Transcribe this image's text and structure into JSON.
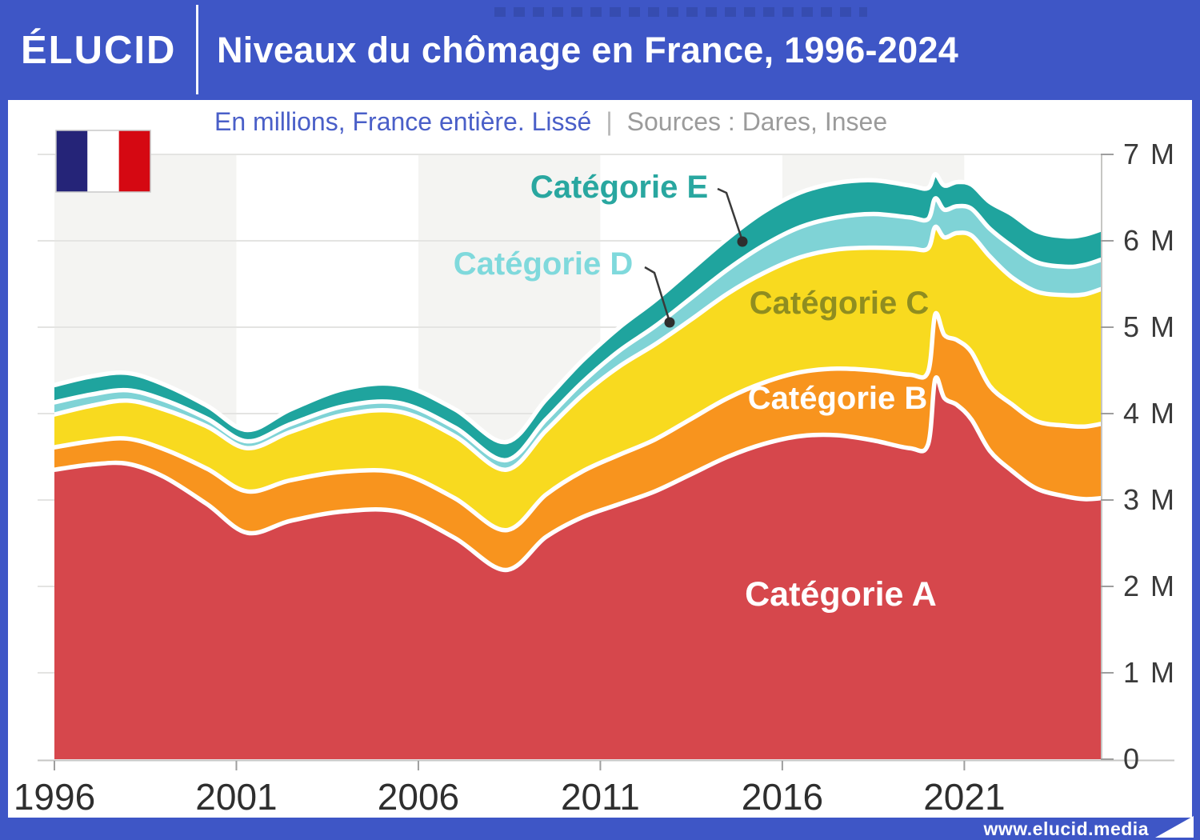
{
  "header": {
    "logo_text": "ÉLUCID",
    "title": "Niveaux du chômage en France, 1996-2024"
  },
  "subtitle": {
    "unit_note": "En millions, France entière. Lissé",
    "divider": "|",
    "sources": "Sources : Dares, Insee"
  },
  "footer": {
    "website": "www.elucid.media"
  },
  "flag_icon": {
    "colors": [
      "#252478",
      "#ffffff",
      "#d50812"
    ]
  },
  "colors": {
    "background_blue": "#3e56c6",
    "card_white": "#ffffff",
    "stripe_gray": "#f4f4f2",
    "gridline": "#e4e4e2",
    "axis_line": "#c6c6c4",
    "tick_mark": "#9e9e9e",
    "tick_text": "#3a3a3a",
    "separator_white": "#ffffff",
    "leader_line": "#3a3a3a"
  },
  "chart_data": {
    "type": "area",
    "stacked": true,
    "title": "Niveaux du chômage en France, 1996-2024",
    "unit": "millions de personnes",
    "grid": "horizontal",
    "background_stripes": "alternating 5-year vertical bands",
    "ylim": [
      0,
      7
    ],
    "x_range": [
      1996,
      2024.75
    ],
    "x": [
      1996,
      1997,
      1998,
      1999,
      2000.2,
      2001.3,
      2002.5,
      2004,
      2005.5,
      2007,
      2008.4,
      2009.5,
      2010.5,
      2011.5,
      2012.5,
      2013.5,
      2014.5,
      2015.5,
      2016.5,
      2017.5,
      2018.5,
      2019.5,
      2020,
      2020.2,
      2020.45,
      2020.8,
      2021.2,
      2021.7,
      2022.3,
      2023,
      2023.8,
      2024.3,
      2024.75
    ],
    "series": [
      {
        "id": "A",
        "name": "Catégorie A",
        "color": "#d6474c",
        "label_color": "#ffffff",
        "values": [
          3.35,
          3.41,
          3.42,
          3.27,
          2.95,
          2.62,
          2.76,
          2.87,
          2.86,
          2.56,
          2.19,
          2.57,
          2.8,
          2.95,
          3.1,
          3.3,
          3.5,
          3.65,
          3.74,
          3.75,
          3.69,
          3.6,
          3.64,
          4.4,
          4.18,
          4.1,
          3.93,
          3.57,
          3.34,
          3.13,
          3.04,
          3.01,
          3.02
        ]
      },
      {
        "id": "B",
        "name": "Catégorie B",
        "color": "#f8941e",
        "label_color": "#ffffff",
        "values": [
          0.26,
          0.27,
          0.29,
          0.32,
          0.41,
          0.48,
          0.47,
          0.46,
          0.45,
          0.46,
          0.46,
          0.49,
          0.53,
          0.57,
          0.6,
          0.64,
          0.68,
          0.71,
          0.74,
          0.77,
          0.81,
          0.85,
          0.84,
          0.75,
          0.73,
          0.75,
          0.78,
          0.75,
          0.77,
          0.78,
          0.82,
          0.84,
          0.86
        ]
      },
      {
        "id": "C",
        "name": "Catégorie C",
        "color": "#f8da1f",
        "label_color": "#8f8d20",
        "values": [
          0.38,
          0.41,
          0.44,
          0.46,
          0.49,
          0.5,
          0.56,
          0.66,
          0.71,
          0.72,
          0.7,
          0.74,
          0.88,
          1.02,
          1.1,
          1.15,
          1.21,
          1.27,
          1.33,
          1.38,
          1.42,
          1.46,
          1.43,
          1.01,
          1.13,
          1.24,
          1.35,
          1.5,
          1.47,
          1.5,
          1.51,
          1.53,
          1.56
        ]
      },
      {
        "id": "D",
        "name": "Catégorie D",
        "color": "#7fd3d6",
        "label_color": "#7fd9dc",
        "values": [
          0.14,
          0.13,
          0.12,
          0.11,
          0.09,
          0.08,
          0.09,
          0.1,
          0.1,
          0.1,
          0.11,
          0.13,
          0.15,
          0.18,
          0.21,
          0.25,
          0.28,
          0.32,
          0.35,
          0.37,
          0.39,
          0.36,
          0.34,
          0.33,
          0.32,
          0.31,
          0.31,
          0.32,
          0.36,
          0.34,
          0.33,
          0.34,
          0.34
        ]
      },
      {
        "id": "E",
        "name": "Catégorie E",
        "color": "#1fa49e",
        "label_color": "#29a7a0",
        "values": [
          0.2,
          0.21,
          0.2,
          0.18,
          0.15,
          0.13,
          0.17,
          0.2,
          0.21,
          0.21,
          0.21,
          0.23,
          0.25,
          0.27,
          0.3,
          0.33,
          0.36,
          0.39,
          0.4,
          0.4,
          0.39,
          0.37,
          0.36,
          0.28,
          0.28,
          0.28,
          0.28,
          0.31,
          0.37,
          0.36,
          0.35,
          0.35,
          0.35
        ]
      }
    ],
    "yticks": [
      "0",
      "1 M",
      "2 M",
      "3 M",
      "4 M",
      "5 M",
      "6 M",
      "7 M"
    ],
    "xticks": [
      "1996",
      "2001",
      "2006",
      "2011",
      "2016",
      "2021"
    ],
    "legend": "labels placed directly on the areas, D and E with leader-line dots"
  }
}
